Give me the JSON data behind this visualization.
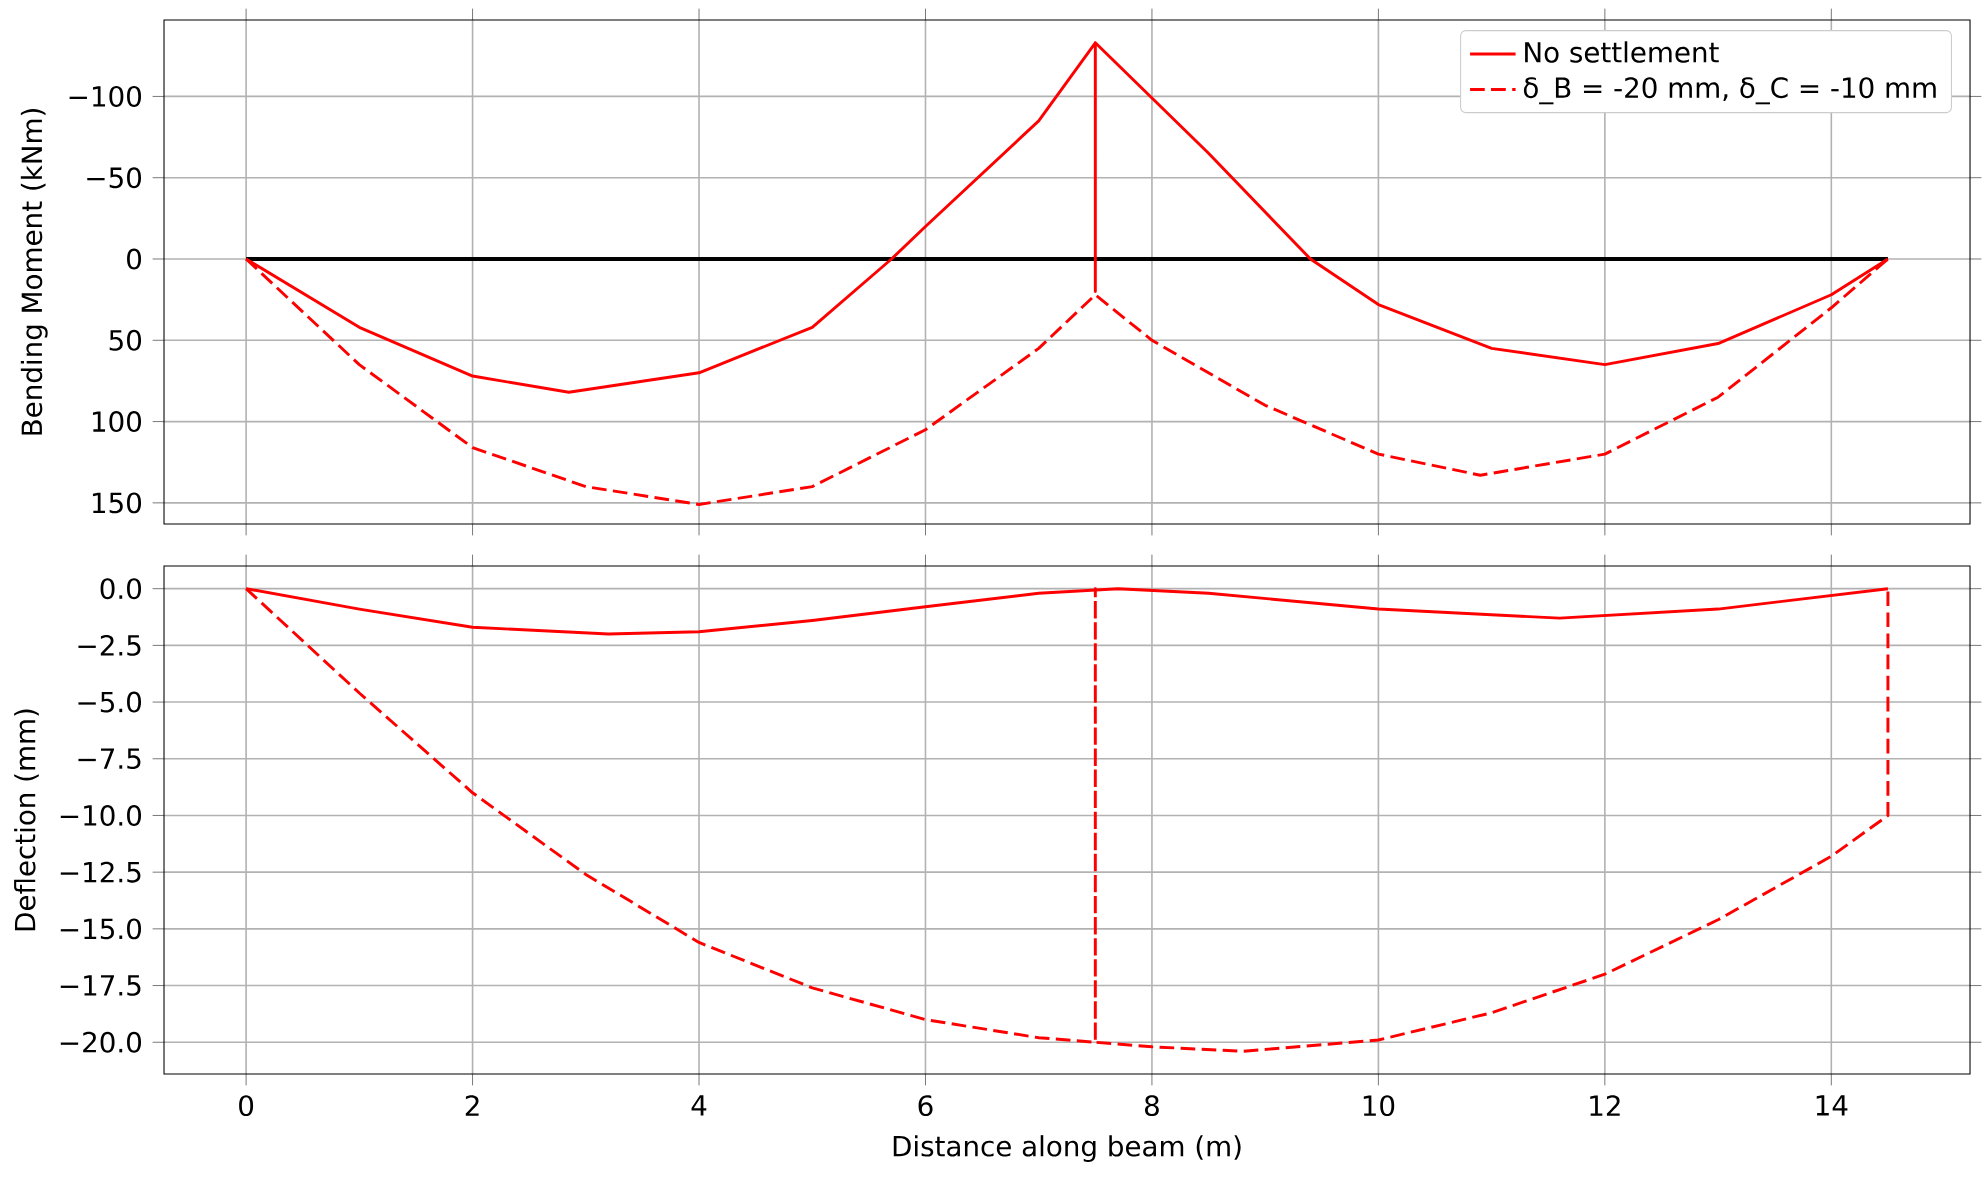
{
  "chart_data": [
    {
      "type": "line",
      "ylabel": "Bending Moment (kNm)",
      "xlim": [
        -0.725,
        15.225
      ],
      "ylim": [
        163,
        -147
      ],
      "xticks": [
        0,
        2,
        4,
        6,
        8,
        10,
        12,
        14
      ],
      "yticks": [
        {
          "value": -100,
          "label": "−100"
        },
        {
          "value": -50,
          "label": "−50"
        },
        0,
        50,
        100,
        150
      ],
      "tick_labels": "y",
      "grid": true,
      "legend": "top right",
      "series": [
        {
          "color": "#000000",
          "x": [
            0,
            14.5
          ],
          "values": [
            0,
            0
          ],
          "line_style": "solid"
        },
        {
          "name": "No settlement",
          "color": "#ff0000",
          "line_style": "solid",
          "x": [
            0,
            1,
            2,
            2.85,
            4,
            5,
            5.7,
            6,
            7,
            7.5,
            7.5,
            7.5,
            8.5,
            9.4,
            10,
            11,
            12,
            13,
            14,
            14.5
          ],
          "values": [
            0,
            42,
            72,
            82,
            70,
            42,
            0,
            -20,
            -85,
            -133,
            20,
            -133,
            -65,
            0,
            28,
            55,
            65,
            52,
            22,
            0
          ]
        },
        {
          "name": "δ_B = -20 mm, δ_C = -10 mm",
          "color": "#ff0000",
          "line_style": "dashed",
          "x": [
            0,
            1,
            2,
            3,
            4,
            5,
            6,
            7,
            7.5,
            8,
            9,
            10,
            10.9,
            12,
            13,
            14,
            14.5
          ],
          "values": [
            0,
            65,
            116,
            140,
            151,
            140,
            105,
            55,
            22,
            50,
            90,
            120,
            133,
            120,
            85,
            30,
            0
          ]
        }
      ]
    },
    {
      "type": "line",
      "xlabel": "Distance along beam (m)",
      "ylabel": "Deflection (mm)",
      "xlim": [
        -0.725,
        15.225
      ],
      "ylim": [
        -21.4,
        1.0
      ],
      "xticks": [
        0,
        2,
        4,
        6,
        8,
        10,
        12,
        14
      ],
      "yticks": [
        {
          "value": 0,
          "label": "0.0"
        },
        {
          "value": -2.5,
          "label": "−2.5"
        },
        {
          "value": -5,
          "label": "−5.0"
        },
        {
          "value": -7.5,
          "label": "−7.5"
        },
        {
          "value": -10,
          "label": "−10.0"
        },
        {
          "value": -12.5,
          "label": "−12.5"
        },
        {
          "value": -15,
          "label": "−15.0"
        },
        {
          "value": -17.5,
          "label": "−17.5"
        },
        {
          "value": -20,
          "label": "−20.0"
        }
      ],
      "grid": true,
      "series": [
        {
          "color": "#ff0000",
          "line_style": "solid",
          "x": [
            0,
            1,
            2,
            3.2,
            4,
            5,
            6,
            7,
            7.7,
            8.5,
            10,
            11.6,
            13,
            14.5
          ],
          "values": [
            0,
            -0.9,
            -1.7,
            -2.0,
            -1.9,
            -1.4,
            -0.8,
            -0.2,
            0,
            -0.2,
            -0.9,
            -1.3,
            -0.9,
            0
          ]
        },
        {
          "color": "#ff0000",
          "line_style": "dashed",
          "x": [
            0,
            1,
            2,
            3,
            4,
            5,
            6,
            7,
            7.5,
            7.5,
            7.5,
            8,
            8.8,
            10,
            11,
            12,
            13,
            14,
            14.5,
            14.5
          ],
          "values": [
            0,
            -4.6,
            -9,
            -12.6,
            -15.6,
            -17.6,
            -19,
            -19.8,
            -20,
            0,
            -20,
            -20.2,
            -20.4,
            -19.9,
            -18.7,
            -17,
            -14.6,
            -11.8,
            -10,
            0
          ]
        }
      ]
    }
  ]
}
